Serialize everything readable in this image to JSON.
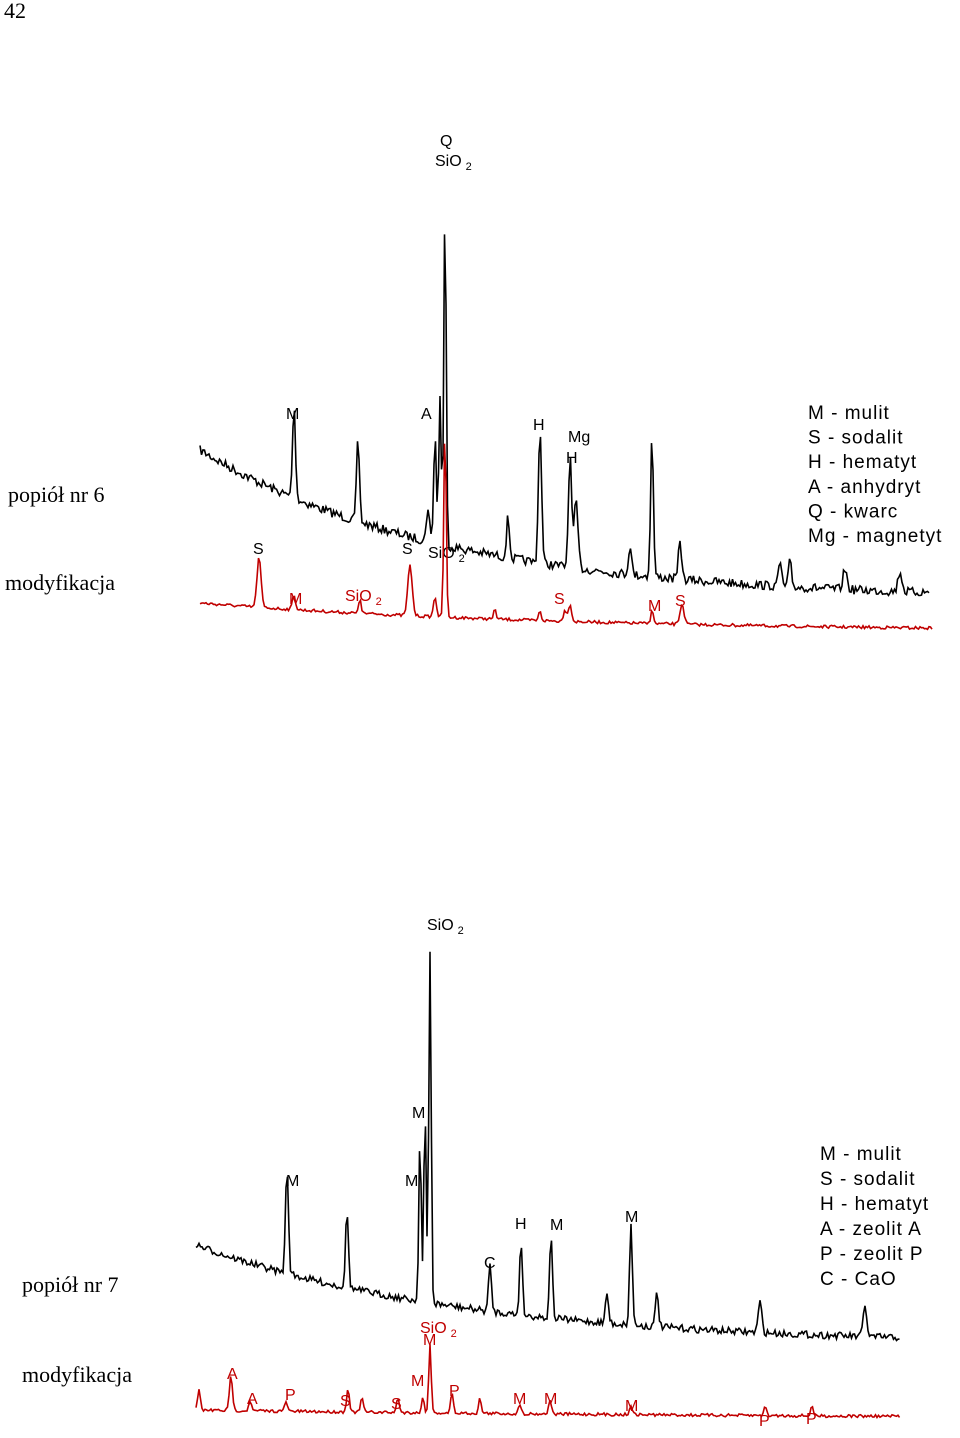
{
  "page_number": "42",
  "figures": [
    {
      "sample_label": "popiół nr 6",
      "modified_label": "modyfikacja",
      "peak_labels": [
        {
          "text": "Q"
        },
        {
          "text": "SiO",
          "sub": "2"
        },
        {
          "text": "M"
        },
        {
          "text": "A"
        },
        {
          "text": "H"
        },
        {
          "text": "Mg"
        },
        {
          "text": "H"
        },
        {
          "text": "S"
        },
        {
          "text": "S"
        },
        {
          "text": "SiO",
          "sub": "2"
        }
      ],
      "modified_peak_labels": [
        {
          "text": "M"
        },
        {
          "text": "SiO",
          "sub": "2"
        },
        {
          "text": "S"
        },
        {
          "text": "M"
        },
        {
          "text": "S"
        }
      ],
      "legend": [
        "M - mulit",
        "S - sodalit",
        "H - hematyt",
        "A - anhydryt",
        "Q - kwarc",
        "Mg - magnetyt"
      ]
    },
    {
      "sample_label": "popiół nr 7",
      "modified_label": "modyfikacja",
      "peak_labels": [
        {
          "text": "SiO",
          "sub": "2"
        },
        {
          "text": "M"
        },
        {
          "text": "M"
        },
        {
          "text": "M"
        },
        {
          "text": "H"
        },
        {
          "text": "M"
        },
        {
          "text": "M"
        },
        {
          "text": "C"
        }
      ],
      "modified_peak_labels": [
        {
          "text": "SiO",
          "sub": "2"
        },
        {
          "text": "M"
        },
        {
          "text": "A"
        },
        {
          "text": "A"
        },
        {
          "text": "P"
        },
        {
          "text": "S"
        },
        {
          "text": "S"
        },
        {
          "text": "M"
        },
        {
          "text": "P"
        },
        {
          "text": "M"
        },
        {
          "text": "M"
        },
        {
          "text": "M"
        },
        {
          "text": "P"
        },
        {
          "text": "P"
        }
      ],
      "legend": [
        "M - mulit",
        "S - sodalit",
        "H - hematyt",
        "A - zeolit A",
        "P - zeolit P",
        "C - CaO"
      ]
    }
  ]
}
